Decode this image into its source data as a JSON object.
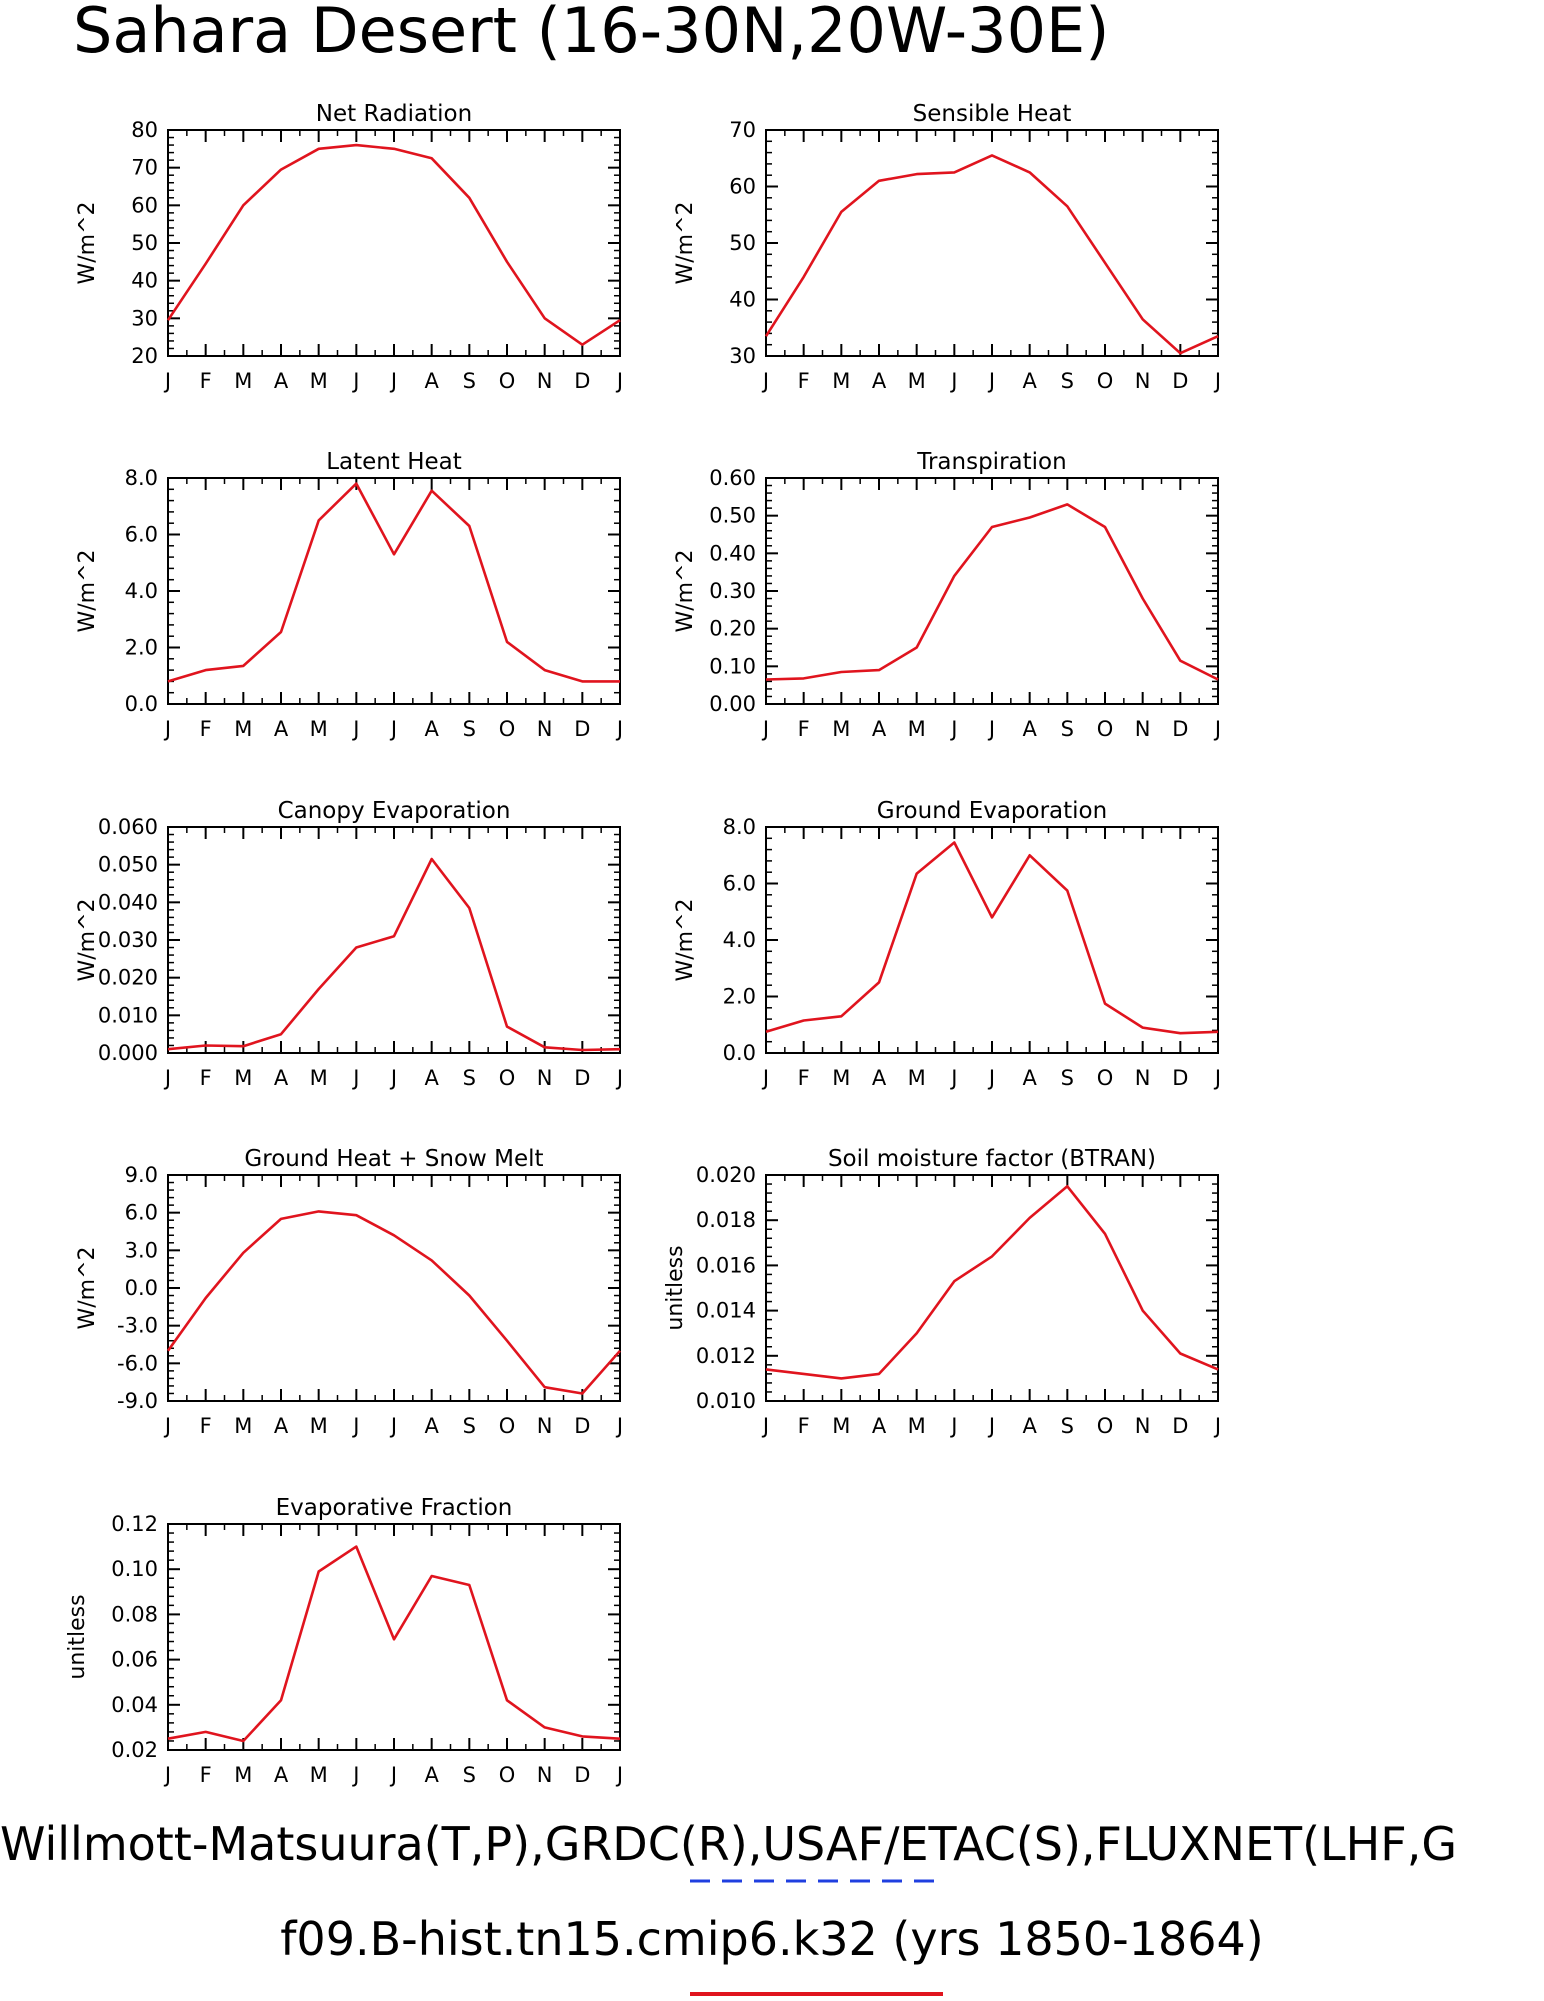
{
  "page_title": "Sahara Desert (16-30N,20W-30E)",
  "footer": {
    "line1": "Willmott-Matsuura(T,P),GRDC(R),USAF/ETAC(S),FLUXNET(LHF,G",
    "line2": "f09.B-hist.tn15.cmip6.k32 (yrs 1850-1864)"
  },
  "colors": {
    "series": "#e0141e",
    "obs_legend": "#1f3fe0",
    "axis": "#000000"
  },
  "chart_data": [
    {
      "type": "line",
      "title": "Net Radiation",
      "ylabel": "W/m^2",
      "categories": [
        "J",
        "F",
        "M",
        "A",
        "M",
        "J",
        "J",
        "A",
        "S",
        "O",
        "N",
        "D",
        "J"
      ],
      "values": [
        29.5,
        44.5,
        60,
        69.5,
        75,
        76,
        75,
        72.5,
        62,
        45,
        30,
        23,
        29.5
      ],
      "ylim": [
        20,
        80
      ],
      "yticks": [
        "20",
        "30",
        "40",
        "50",
        "60",
        "70",
        "80"
      ]
    },
    {
      "type": "line",
      "title": "Sensible Heat",
      "ylabel": "W/m^2",
      "categories": [
        "J",
        "F",
        "M",
        "A",
        "M",
        "J",
        "J",
        "A",
        "S",
        "O",
        "N",
        "D",
        "J"
      ],
      "values": [
        33.5,
        44,
        55.5,
        61,
        62.2,
        62.5,
        65.5,
        62.5,
        56.5,
        46.5,
        36.5,
        30.5,
        33.5
      ],
      "ylim": [
        30,
        70
      ],
      "yticks": [
        "30",
        "40",
        "50",
        "60",
        "70"
      ]
    },
    {
      "type": "line",
      "title": "Latent Heat",
      "ylabel": "W/m^2",
      "categories": [
        "J",
        "F",
        "M",
        "A",
        "M",
        "J",
        "J",
        "A",
        "S",
        "O",
        "N",
        "D",
        "J"
      ],
      "values": [
        0.8,
        1.2,
        1.35,
        2.55,
        6.5,
        7.8,
        5.3,
        7.55,
        6.3,
        2.2,
        1.2,
        0.8,
        0.8
      ],
      "ylim": [
        0,
        8
      ],
      "yticks": [
        "0.0",
        "2.0",
        "4.0",
        "6.0",
        "8.0"
      ]
    },
    {
      "type": "line",
      "title": "Transpiration",
      "ylabel": "W/m^2",
      "categories": [
        "J",
        "F",
        "M",
        "A",
        "M",
        "J",
        "J",
        "A",
        "S",
        "O",
        "N",
        "D",
        "J"
      ],
      "values": [
        0.065,
        0.068,
        0.085,
        0.09,
        0.15,
        0.34,
        0.47,
        0.495,
        0.53,
        0.47,
        0.28,
        0.115,
        0.065
      ],
      "ylim": [
        0,
        0.6
      ],
      "yticks": [
        "0.00",
        "0.10",
        "0.20",
        "0.30",
        "0.40",
        "0.50",
        "0.60"
      ]
    },
    {
      "type": "line",
      "title": "Canopy Evaporation",
      "ylabel": "W/m^2",
      "categories": [
        "J",
        "F",
        "M",
        "A",
        "M",
        "J",
        "J",
        "A",
        "S",
        "O",
        "N",
        "D",
        "J"
      ],
      "values": [
        0.001,
        0.002,
        0.0018,
        0.005,
        0.017,
        0.028,
        0.031,
        0.0515,
        0.0385,
        0.007,
        0.0015,
        0.0008,
        0.001
      ],
      "ylim": [
        0,
        0.06
      ],
      "yticks": [
        "0.000",
        "0.010",
        "0.020",
        "0.030",
        "0.040",
        "0.050",
        "0.060"
      ]
    },
    {
      "type": "line",
      "title": "Ground Evaporation",
      "ylabel": "W/m^2",
      "categories": [
        "J",
        "F",
        "M",
        "A",
        "M",
        "J",
        "J",
        "A",
        "S",
        "O",
        "N",
        "D",
        "J"
      ],
      "values": [
        0.75,
        1.15,
        1.3,
        2.5,
        6.35,
        7.45,
        4.8,
        7.0,
        5.75,
        1.75,
        0.9,
        0.7,
        0.75
      ],
      "ylim": [
        0,
        8
      ],
      "yticks": [
        "0.0",
        "2.0",
        "4.0",
        "6.0",
        "8.0"
      ]
    },
    {
      "type": "line",
      "title": "Ground Heat + Snow Melt",
      "ylabel": "W/m^2",
      "categories": [
        "J",
        "F",
        "M",
        "A",
        "M",
        "J",
        "J",
        "A",
        "S",
        "O",
        "N",
        "D",
        "J"
      ],
      "values": [
        -5,
        -0.8,
        2.8,
        5.5,
        6.1,
        5.8,
        4.2,
        2.2,
        -0.6,
        -4.2,
        -7.9,
        -8.4,
        -5
      ],
      "ylim": [
        -9,
        9
      ],
      "yticks": [
        "-9.0",
        "-6.0",
        "-3.0",
        "0.0",
        "3.0",
        "6.0",
        "9.0"
      ]
    },
    {
      "type": "line",
      "title": "Soil moisture factor (BTRAN)",
      "ylabel": "unitless",
      "categories": [
        "J",
        "F",
        "M",
        "A",
        "M",
        "J",
        "J",
        "A",
        "S",
        "O",
        "N",
        "D",
        "J"
      ],
      "values": [
        0.0114,
        0.0112,
        0.011,
        0.0112,
        0.013,
        0.0153,
        0.0164,
        0.0181,
        0.0195,
        0.0174,
        0.014,
        0.0121,
        0.0114
      ],
      "ylim": [
        0.01,
        0.02
      ],
      "yticks": [
        "0.010",
        "0.012",
        "0.014",
        "0.016",
        "0.018",
        "0.020"
      ]
    },
    {
      "type": "line",
      "title": "Evaporative Fraction",
      "ylabel": "unitless",
      "categories": [
        "J",
        "F",
        "M",
        "A",
        "M",
        "J",
        "J",
        "A",
        "S",
        "O",
        "N",
        "D",
        "J"
      ],
      "values": [
        0.025,
        0.028,
        0.024,
        0.042,
        0.099,
        0.11,
        0.069,
        0.097,
        0.093,
        0.042,
        0.03,
        0.026,
        0.025
      ],
      "ylim": [
        0.02,
        0.12
      ],
      "yticks": [
        "0.02",
        "0.04",
        "0.06",
        "0.08",
        "0.10",
        "0.12"
      ]
    }
  ]
}
